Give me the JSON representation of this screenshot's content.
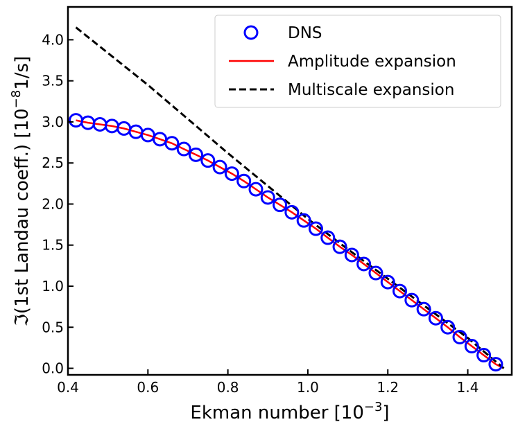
{
  "chart_data": {
    "type": "line",
    "xlabel": "Ekman number [10",
    "xlabel_exp": "−3",
    "xlabel_close": "]",
    "ylabel": "ℑ(1st Landau coeff.) [10",
    "ylabel_exp": "−8",
    "ylabel_unit": "1/s]",
    "xlim": [
      0.4,
      1.51
    ],
    "ylim": [
      -0.08,
      4.4
    ],
    "xticks": [
      0.4,
      0.6,
      0.8,
      1.0,
      1.2,
      1.4
    ],
    "xtick_labels": [
      "0.4",
      "0.6",
      "0.8",
      "1.0",
      "1.2",
      "1.4"
    ],
    "yticks": [
      0.0,
      0.5,
      1.0,
      1.5,
      2.0,
      2.5,
      3.0,
      3.5,
      4.0
    ],
    "ytick_labels": [
      "0.0",
      "0.5",
      "1.0",
      "1.5",
      "2.0",
      "2.5",
      "3.0",
      "3.5",
      "4.0"
    ],
    "grid": false,
    "legend_position": "top-right",
    "series": [
      {
        "name": "DNS",
        "style": "markers",
        "color": "#0000ff",
        "x": [
          0.42,
          0.45,
          0.48,
          0.51,
          0.54,
          0.57,
          0.6,
          0.63,
          0.66,
          0.69,
          0.72,
          0.75,
          0.78,
          0.81,
          0.84,
          0.87,
          0.9,
          0.93,
          0.96,
          0.99,
          1.02,
          1.05,
          1.08,
          1.11,
          1.14,
          1.17,
          1.2,
          1.23,
          1.26,
          1.29,
          1.32,
          1.35,
          1.38,
          1.41,
          1.44,
          1.47
        ],
        "y": [
          3.02,
          2.99,
          2.97,
          2.95,
          2.92,
          2.88,
          2.84,
          2.79,
          2.74,
          2.67,
          2.6,
          2.53,
          2.45,
          2.37,
          2.28,
          2.18,
          2.08,
          1.99,
          1.9,
          1.8,
          1.7,
          1.59,
          1.48,
          1.38,
          1.27,
          1.16,
          1.05,
          0.94,
          0.83,
          0.72,
          0.61,
          0.5,
          0.38,
          0.27,
          0.16,
          0.05
        ]
      },
      {
        "name": "Amplitude expansion",
        "style": "solid",
        "color": "#ff0000",
        "x": [
          0.42,
          0.45,
          0.48,
          0.51,
          0.54,
          0.57,
          0.6,
          0.63,
          0.66,
          0.69,
          0.72,
          0.75,
          0.78,
          0.81,
          0.84,
          0.87,
          0.9,
          0.93,
          0.96,
          0.99,
          1.02,
          1.05,
          1.08,
          1.11,
          1.14,
          1.17,
          1.2,
          1.23,
          1.26,
          1.29,
          1.32,
          1.35,
          1.38,
          1.41,
          1.44,
          1.47,
          1.49
        ],
        "y": [
          3.02,
          2.99,
          2.97,
          2.95,
          2.92,
          2.88,
          2.84,
          2.79,
          2.74,
          2.67,
          2.6,
          2.53,
          2.45,
          2.37,
          2.28,
          2.18,
          2.08,
          1.99,
          1.9,
          1.8,
          1.7,
          1.59,
          1.48,
          1.38,
          1.27,
          1.16,
          1.05,
          0.94,
          0.83,
          0.72,
          0.61,
          0.5,
          0.38,
          0.27,
          0.16,
          0.05,
          0.0
        ]
      },
      {
        "name": "Multiscale expansion",
        "style": "dashed",
        "color": "#000000",
        "x": [
          0.42,
          0.6,
          0.8,
          1.0,
          1.1,
          1.2,
          1.3,
          1.4,
          1.49
        ],
        "y": [
          4.15,
          3.45,
          2.62,
          1.82,
          1.45,
          1.09,
          0.73,
          0.37,
          0.0
        ]
      }
    ]
  }
}
